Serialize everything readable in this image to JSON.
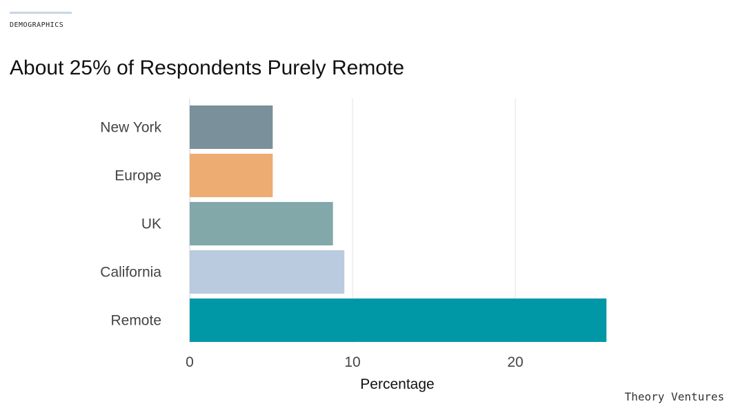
{
  "section_label": "DEMOGRAPHICS",
  "title": "About 25% of Respondents Purely Remote",
  "brand": "Theory Ventures",
  "chart_data": {
    "type": "bar",
    "orientation": "horizontal",
    "categories": [
      "New York",
      "Europe",
      "UK",
      "California",
      "Remote"
    ],
    "values": [
      5.1,
      5.1,
      8.8,
      9.5,
      25.6
    ],
    "colors": [
      "#7a909b",
      "#ecac72",
      "#82a8aa",
      "#bacadf",
      "#0098a6"
    ],
    "xlabel": "Percentage",
    "xlim": [
      0,
      26
    ],
    "xticks": [
      0,
      10,
      20
    ],
    "grid": "vertical"
  }
}
